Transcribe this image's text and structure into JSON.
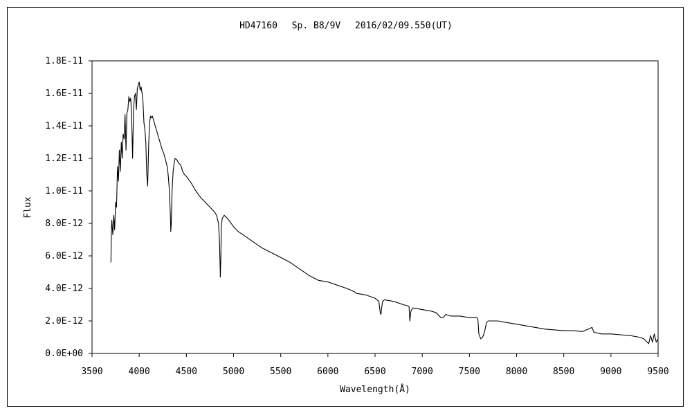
{
  "chart_data": {
    "type": "line",
    "title": "HD47160　 Sp. B8/9V　 2016/02/09.550(UT)",
    "xlabel": "Wavelength(Å)",
    "ylabel": "Flux",
    "xlim": [
      3500,
      9500
    ],
    "ylim": [
      0,
      1.8e-11
    ],
    "x_ticks": [
      3500,
      4000,
      4500,
      5000,
      5500,
      6000,
      6500,
      7000,
      7500,
      8000,
      8500,
      9000,
      9500
    ],
    "x_tick_labels": [
      "3500",
      "4000",
      "4500",
      "5000",
      "5500",
      "6000",
      "6500",
      "7000",
      "7500",
      "8000",
      "8500",
      "9000",
      "9500"
    ],
    "y_ticks": [
      0,
      2e-12,
      4e-12,
      6e-12,
      8e-12,
      1e-11,
      1.2e-11,
      1.4e-11,
      1.6e-11,
      1.8e-11
    ],
    "y_tick_labels": [
      "0.0E+00",
      "2.0E-12",
      "4.0E-12",
      "6.0E-12",
      "8.0E-12",
      "1.0E-11",
      "1.2E-11",
      "1.4E-11",
      "1.6E-11",
      "1.8E-11"
    ],
    "grid": false,
    "legend": "none",
    "line_color": "#000000",
    "series": [
      {
        "x": [
          3700,
          3705,
          3710,
          3720,
          3730,
          3740,
          3750,
          3760,
          3770,
          3780,
          3790,
          3800,
          3810,
          3820,
          3830,
          3840,
          3850,
          3860,
          3870,
          3880,
          3890,
          3900,
          3910,
          3920,
          3930,
          3940,
          3950,
          3960,
          3970,
          3980,
          3990,
          4000,
          4010,
          4020,
          4030,
          4040,
          4050,
          4060,
          4070,
          4080,
          4090,
          4100,
          4105,
          4110,
          4120,
          4130,
          4140,
          4150,
          4160,
          4170,
          4180,
          4190,
          4200,
          4220,
          4240,
          4260,
          4280,
          4300,
          4310,
          4320,
          4330,
          4335,
          4340,
          4345,
          4350,
          4360,
          4370,
          4380,
          4400,
          4420,
          4440,
          4460,
          4480,
          4500,
          4550,
          4600,
          4650,
          4700,
          4750,
          4800,
          4820,
          4840,
          4850,
          4855,
          4860,
          4865,
          4870,
          4880,
          4890,
          4900,
          4920,
          4950,
          5000,
          5050,
          5100,
          5150,
          5200,
          5300,
          5400,
          5500,
          5600,
          5700,
          5800,
          5900,
          6000,
          6100,
          6200,
          6280,
          6300,
          6400,
          6500,
          6540,
          6555,
          6563,
          6570,
          6580,
          6600,
          6700,
          6800,
          6860,
          6868,
          6880,
          6900,
          7000,
          7100,
          7150,
          7180,
          7200,
          7220,
          7250,
          7300,
          7400,
          7500,
          7580,
          7590,
          7600,
          7620,
          7640,
          7660,
          7680,
          7700,
          7800,
          7900,
          8000,
          8100,
          8200,
          8300,
          8400,
          8500,
          8600,
          8700,
          8800,
          8820,
          8900,
          9000,
          9100,
          9200,
          9300,
          9350,
          9400,
          9420,
          9440,
          9460,
          9480,
          9500
        ],
        "y": [
          5.6e-12,
          7.5e-12,
          8.2e-12,
          7.3e-12,
          8.5e-12,
          7.6e-12,
          9.3e-12,
          9e-12,
          1.15e-11,
          1.06e-11,
          1.25e-11,
          1.12e-11,
          1.3e-11,
          1.2e-11,
          1.35e-11,
          1.32e-11,
          1.47e-11,
          1.25e-11,
          1.48e-11,
          1.5e-11,
          1.58e-11,
          1.55e-11,
          1.57e-11,
          1.45e-11,
          1.2e-11,
          1.5e-11,
          1.58e-11,
          1.6e-11,
          1.5e-11,
          1.63e-11,
          1.65e-11,
          1.67e-11,
          1.62e-11,
          1.64e-11,
          1.6e-11,
          1.55e-11,
          1.42e-11,
          1.38e-11,
          1.3e-11,
          1.1e-11,
          1.03e-11,
          1.28e-11,
          1.35e-11,
          1.42e-11,
          1.46e-11,
          1.45e-11,
          1.46e-11,
          1.44e-11,
          1.42e-11,
          1.4e-11,
          1.38e-11,
          1.36e-11,
          1.34e-11,
          1.3e-11,
          1.26e-11,
          1.23e-11,
          1.19e-11,
          1.14e-11,
          1.08e-11,
          1e-11,
          8.5e-12,
          7.5e-12,
          8e-12,
          9.3e-12,
          1.02e-11,
          1.12e-11,
          1.17e-11,
          1.2e-11,
          1.19e-11,
          1.17e-11,
          1.16e-11,
          1.12e-11,
          1.1e-11,
          1.09e-11,
          1.05e-11,
          1e-11,
          9.6e-12,
          9.3e-12,
          9e-12,
          8.7e-12,
          8.5e-12,
          8e-12,
          7e-12,
          6e-12,
          4.7e-12,
          5.8e-12,
          7.8e-12,
          8.3e-12,
          8.4e-12,
          8.5e-12,
          8.4e-12,
          8.2e-12,
          7.8e-12,
          7.5e-12,
          7.3e-12,
          7.1e-12,
          6.9e-12,
          6.5e-12,
          6.2e-12,
          5.9e-12,
          5.6e-12,
          5.2e-12,
          4.8e-12,
          4.5e-12,
          4.4e-12,
          4.2e-12,
          4e-12,
          3.8e-12,
          3.7e-12,
          3.6e-12,
          3.4e-12,
          3.2e-12,
          2.5e-12,
          2.4e-12,
          2.8e-12,
          3.2e-12,
          3.3e-12,
          3.2e-12,
          3e-12,
          2.9e-12,
          2e-12,
          2.6e-12,
          2.8e-12,
          2.7e-12,
          2.6e-12,
          2.5e-12,
          2.3e-12,
          2.2e-12,
          2.2e-12,
          2.4e-12,
          2.3e-12,
          2.3e-12,
          2.2e-12,
          2.2e-12,
          2.1e-12,
          1.2e-12,
          9e-13,
          1e-12,
          1.3e-12,
          1.9e-12,
          2e-12,
          2e-12,
          1.9e-12,
          1.8e-12,
          1.7e-12,
          1.6e-12,
          1.5e-12,
          1.45e-12,
          1.4e-12,
          1.4e-12,
          1.35e-12,
          1.6e-12,
          1.3e-12,
          1.2e-12,
          1.2e-12,
          1.15e-12,
          1.1e-12,
          1e-12,
          9e-13,
          6e-13,
          1.1e-12,
          7e-13,
          1.2e-12,
          7e-13,
          9e-13
        ]
      }
    ]
  }
}
